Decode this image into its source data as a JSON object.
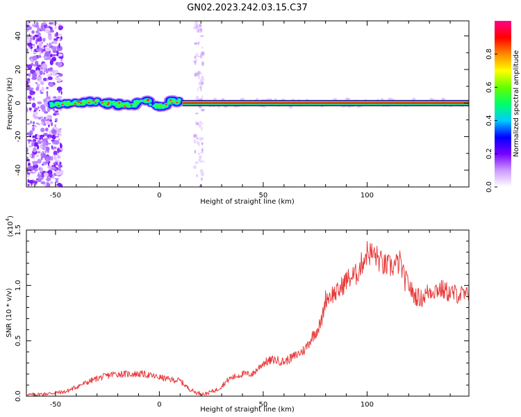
{
  "title": "GN02.2023.242.03.15.C37",
  "chart_data": [
    {
      "type": "heatmap",
      "name": "spectrogram",
      "xlabel": "Height of straight line (km)",
      "ylabel": "Frequency (Hz)",
      "xlim": [
        -64,
        149
      ],
      "ylim": [
        -50,
        49
      ],
      "xticks": [
        -50,
        0,
        50,
        100
      ],
      "xtick_labels": [
        "-50",
        "0",
        "50",
        "100"
      ],
      "yticks": [
        40,
        20,
        0,
        -20,
        -40
      ],
      "ytick_labels": [
        "40",
        "20",
        "0",
        "-20",
        "-40"
      ],
      "colorbar": {
        "label": "Normalized spectral amplitude",
        "range": [
          0,
          1
        ],
        "ticks": [
          0.0,
          0.2,
          0.4,
          0.6,
          0.8
        ],
        "tick_labels": [
          "0.0",
          "0.2",
          "0.4",
          "0.6",
          "0.8"
        ],
        "colors": [
          "#ffffff",
          "#cc99ff",
          "#7700ff",
          "#0000ff",
          "#00ccff",
          "#00ff66",
          "#66ff00",
          "#ffff00",
          "#ff8800",
          "#ff0000",
          "#ff0088"
        ]
      },
      "features": {
        "noise_band_x": [
          -64,
          -47
        ],
        "carrier_frequency_hz": 0,
        "carrier_start_x": -52,
        "band_start_x": 11,
        "interference_x": 19
      }
    },
    {
      "type": "line",
      "name": "snr",
      "xlabel": "Height of straight line (km)",
      "ylabel": "SNR (10 * v/v)",
      "multiplier_label": "(x10",
      "multiplier_exponent": "4",
      "xlim": [
        -64,
        149
      ],
      "ylim": [
        0,
        1.5
      ],
      "xticks": [
        -50,
        0,
        50,
        100
      ],
      "xtick_labels": [
        "-50",
        "0",
        "50",
        "100"
      ],
      "yticks": [
        0,
        0.5,
        1.0,
        1.5
      ],
      "ytick_labels": [
        "0.0",
        "0.5",
        "1.0",
        "1.5"
      ],
      "color": "#e8393a",
      "series": [
        {
          "x": [
            -64,
            -55,
            -45,
            -38,
            -30,
            -22,
            -15,
            -8,
            0,
            5,
            10,
            14,
            18,
            22,
            28,
            34,
            40,
            45,
            50,
            55,
            60,
            65,
            70,
            74,
            76,
            78,
            80,
            83,
            86,
            90,
            95,
            100,
            104,
            108,
            112,
            116,
            118,
            120,
            122,
            126,
            130,
            135,
            140,
            145,
            149
          ],
          "y": [
            0.01,
            0.02,
            0.04,
            0.1,
            0.16,
            0.2,
            0.2,
            0.2,
            0.17,
            0.15,
            0.14,
            0.07,
            0.03,
            0.02,
            0.06,
            0.16,
            0.2,
            0.2,
            0.3,
            0.33,
            0.31,
            0.36,
            0.42,
            0.55,
            0.6,
            0.67,
            0.88,
            0.92,
            0.94,
            1.05,
            1.1,
            1.3,
            1.27,
            1.18,
            1.17,
            1.21,
            1.05,
            1.02,
            0.92,
            0.88,
            0.95,
            0.97,
            0.93,
            0.92,
            0.9
          ]
        }
      ]
    }
  ]
}
